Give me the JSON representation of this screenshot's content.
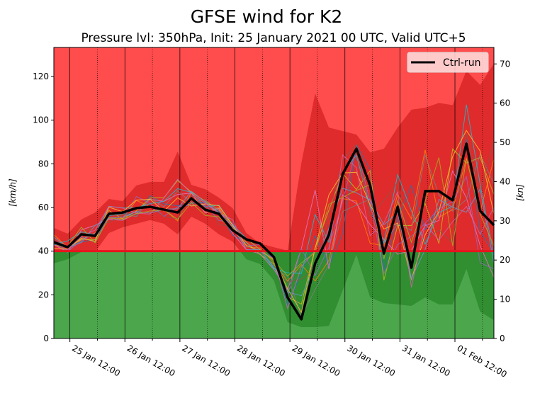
{
  "chart_data": {
    "type": "line",
    "title": "GFSE wind for K2",
    "subtitle": "Pressure lvl: 350hPa, Init: 25 January 2021 00 UTC, Valid UTC+5",
    "ylabel_left": "[km/h]",
    "ylabel_right": "[kn]",
    "ylim": [
      0,
      133.3
    ],
    "y_ticks_left": [
      0,
      20,
      40,
      60,
      80,
      100,
      120
    ],
    "y_ticks_right": [
      0,
      10,
      20,
      30,
      40,
      50,
      60,
      70
    ],
    "threshold_kmh": 40,
    "x_start": "25 Jan 05:00",
    "x_step_hours": 6,
    "x_tick_labels": [
      "25 Jan 12:00",
      "26 Jan 12:00",
      "27 Jan 12:00",
      "28 Jan 12:00",
      "29 Jan 12:00",
      "30 Jan 12:00",
      "31 Jan 12:00",
      "01 Feb 12:00"
    ],
    "legend": {
      "label": "Ctrl-run",
      "placement": "top-right"
    },
    "grid": "vertical: solid at 12:00, dotted at 00:00",
    "series": [
      {
        "name": "Ctrl-run",
        "color": "#000000",
        "values": [
          44.1,
          41.8,
          47.7,
          47.0,
          57.1,
          57.7,
          59.7,
          60.3,
          59.0,
          57.7,
          64.2,
          59.0,
          57.1,
          49.6,
          45.4,
          43.5,
          37.3,
          18.8,
          8.8,
          34.4,
          47.4,
          75.3,
          86.9,
          70.1,
          38.9,
          60.3,
          32.4,
          67.5,
          67.5,
          63.3,
          89.2,
          58.4,
          51.9
        ]
      },
      {
        "name": "ensemble-max",
        "values": [
          50.6,
          48.0,
          54.5,
          57.7,
          63.9,
          62.9,
          70.1,
          71.7,
          71.7,
          85.6,
          70.4,
          68.4,
          64.5,
          59.7,
          48.3,
          43.5,
          41.8,
          40.2,
          80.4,
          112.2,
          96.6,
          95.0,
          93.4,
          85.3,
          86.9,
          96.6,
          104.8,
          105.7,
          107.9,
          106.9,
          122.6,
          116.1,
          125.9
        ]
      },
      {
        "name": "ensemble-min",
        "values": [
          34.4,
          36.3,
          39.6,
          39.6,
          48.3,
          50.9,
          52.6,
          54.2,
          52.6,
          47.7,
          55.8,
          52.6,
          47.7,
          44.4,
          36.3,
          34.1,
          26.6,
          7.5,
          5.2,
          5.2,
          5.8,
          22.0,
          38.3,
          18.8,
          16.2,
          15.6,
          14.9,
          18.8,
          15.6,
          15.6,
          31.8,
          12.3,
          8.4
        ]
      }
    ]
  }
}
